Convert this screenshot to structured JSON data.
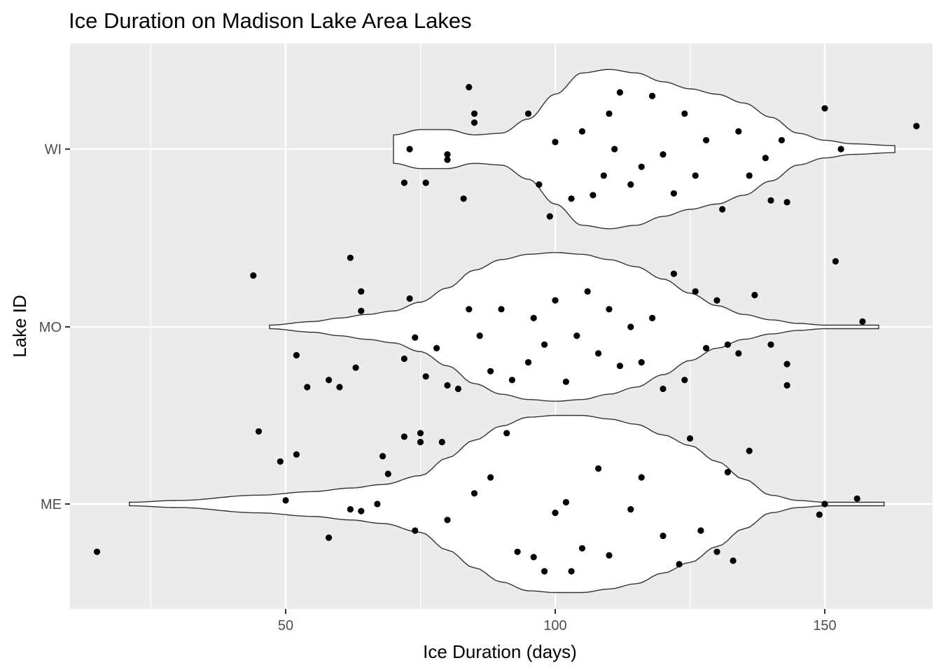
{
  "chart_data": {
    "type": "violin",
    "title": "Ice Duration on Madison Lake Area Lakes",
    "xlabel": "Ice Duration (days)",
    "ylabel": "Lake ID",
    "xlim": [
      10,
      170
    ],
    "x_ticks": [
      50,
      100,
      150
    ],
    "x_minor_ticks": [
      25,
      75,
      125
    ],
    "grid": true,
    "categories": [
      "ME",
      "MO",
      "WI"
    ],
    "colors": {
      "panel_background": "#ebebeb",
      "grid": "#ffffff",
      "violin_fill": "#ffffff",
      "violin_outline": "#333333",
      "points": "#000000"
    },
    "series": [
      {
        "category": "ME",
        "range": [
          21,
          161
        ],
        "density_profile": [
          [
            21,
            0.01
          ],
          [
            30,
            0.02
          ],
          [
            45,
            0.05
          ],
          [
            55,
            0.07
          ],
          [
            62,
            0.09
          ],
          [
            68,
            0.11
          ],
          [
            75,
            0.16
          ],
          [
            80,
            0.26
          ],
          [
            85,
            0.36
          ],
          [
            90,
            0.44
          ],
          [
            95,
            0.49
          ],
          [
            100,
            0.5
          ],
          [
            105,
            0.5
          ],
          [
            110,
            0.48
          ],
          [
            115,
            0.45
          ],
          [
            120,
            0.39
          ],
          [
            125,
            0.33
          ],
          [
            130,
            0.24
          ],
          [
            135,
            0.14
          ],
          [
            140,
            0.05
          ],
          [
            145,
            0.02
          ],
          [
            150,
            0.01
          ],
          [
            161,
            0.01
          ]
        ],
        "points": [
          [
            15,
            0.27
          ],
          [
            45,
            -0.41
          ],
          [
            49,
            -0.24
          ],
          [
            50,
            -0.02
          ],
          [
            52,
            -0.28
          ],
          [
            58,
            0.19
          ],
          [
            62,
            0.03
          ],
          [
            64,
            0.04
          ],
          [
            67,
            0.0
          ],
          [
            68,
            -0.27
          ],
          [
            69,
            -0.17
          ],
          [
            72,
            -0.38
          ],
          [
            74,
            0.15
          ],
          [
            75,
            -0.35
          ],
          [
            75,
            -0.4
          ],
          [
            79,
            -0.35
          ],
          [
            80,
            0.09
          ],
          [
            85,
            -0.06
          ],
          [
            88,
            -0.15
          ],
          [
            91,
            -0.4
          ],
          [
            93,
            0.27
          ],
          [
            96,
            0.3
          ],
          [
            98,
            0.38
          ],
          [
            100,
            0.05
          ],
          [
            102,
            -0.01
          ],
          [
            103,
            0.38
          ],
          [
            105,
            0.25
          ],
          [
            108,
            -0.2
          ],
          [
            110,
            0.29
          ],
          [
            114,
            0.03
          ],
          [
            116,
            -0.15
          ],
          [
            120,
            0.18
          ],
          [
            123,
            0.34
          ],
          [
            125,
            -0.37
          ],
          [
            127,
            0.15
          ],
          [
            130,
            0.27
          ],
          [
            132,
            -0.18
          ],
          [
            133,
            0.32
          ],
          [
            136,
            -0.3
          ],
          [
            149,
            0.06
          ],
          [
            150,
            0.0
          ],
          [
            156,
            -0.03
          ]
        ]
      },
      {
        "category": "MO",
        "range": [
          47,
          160
        ],
        "density_profile": [
          [
            47,
            0.01
          ],
          [
            55,
            0.03
          ],
          [
            60,
            0.05
          ],
          [
            65,
            0.07
          ],
          [
            70,
            0.09
          ],
          [
            75,
            0.14
          ],
          [
            80,
            0.22
          ],
          [
            85,
            0.32
          ],
          [
            90,
            0.38
          ],
          [
            95,
            0.41
          ],
          [
            100,
            0.42
          ],
          [
            105,
            0.41
          ],
          [
            110,
            0.38
          ],
          [
            115,
            0.34
          ],
          [
            120,
            0.27
          ],
          [
            125,
            0.19
          ],
          [
            130,
            0.12
          ],
          [
            135,
            0.07
          ],
          [
            140,
            0.04
          ],
          [
            145,
            0.02
          ],
          [
            150,
            0.01
          ],
          [
            160,
            0.01
          ]
        ],
        "points": [
          [
            44,
            -0.29
          ],
          [
            52,
            0.16
          ],
          [
            54,
            0.34
          ],
          [
            58,
            0.3
          ],
          [
            60,
            0.34
          ],
          [
            62,
            -0.39
          ],
          [
            63,
            0.23
          ],
          [
            64,
            -0.09
          ],
          [
            64,
            -0.2
          ],
          [
            72,
            0.18
          ],
          [
            73,
            -0.16
          ],
          [
            74,
            0.06
          ],
          [
            76,
            0.28
          ],
          [
            78,
            0.12
          ],
          [
            80,
            0.33
          ],
          [
            82,
            0.35
          ],
          [
            84,
            -0.1
          ],
          [
            86,
            0.05
          ],
          [
            88,
            0.25
          ],
          [
            90,
            -0.1
          ],
          [
            92,
            0.3
          ],
          [
            95,
            0.2
          ],
          [
            96,
            -0.05
          ],
          [
            98,
            0.1
          ],
          [
            100,
            -0.15
          ],
          [
            102,
            0.31
          ],
          [
            104,
            0.05
          ],
          [
            106,
            -0.2
          ],
          [
            108,
            0.15
          ],
          [
            110,
            -0.1
          ],
          [
            112,
            0.22
          ],
          [
            114,
            0.0
          ],
          [
            116,
            0.2
          ],
          [
            118,
            -0.05
          ],
          [
            120,
            0.35
          ],
          [
            122,
            -0.3
          ],
          [
            124,
            0.3
          ],
          [
            126,
            -0.2
          ],
          [
            128,
            0.12
          ],
          [
            130,
            -0.15
          ],
          [
            132,
            0.1
          ],
          [
            134,
            0.15
          ],
          [
            137,
            -0.18
          ],
          [
            140,
            0.1
          ],
          [
            143,
            0.33
          ],
          [
            143,
            0.21
          ],
          [
            152,
            -0.37
          ],
          [
            157,
            -0.03
          ]
        ]
      },
      {
        "category": "WI",
        "range": [
          70,
          163
        ],
        "density_profile": [
          [
            70,
            0.08
          ],
          [
            75,
            0.11
          ],
          [
            80,
            0.11
          ],
          [
            85,
            0.08
          ],
          [
            90,
            0.09
          ],
          [
            95,
            0.17
          ],
          [
            100,
            0.31
          ],
          [
            105,
            0.43
          ],
          [
            110,
            0.45
          ],
          [
            115,
            0.43
          ],
          [
            120,
            0.38
          ],
          [
            125,
            0.34
          ],
          [
            130,
            0.31
          ],
          [
            135,
            0.26
          ],
          [
            140,
            0.18
          ],
          [
            145,
            0.09
          ],
          [
            150,
            0.05
          ],
          [
            155,
            0.03
          ],
          [
            163,
            0.02
          ]
        ],
        "points": [
          [
            72,
            0.19
          ],
          [
            73,
            0.0
          ],
          [
            76,
            0.19
          ],
          [
            80,
            0.06
          ],
          [
            80,
            0.03
          ],
          [
            83,
            0.28
          ],
          [
            84,
            -0.35
          ],
          [
            85,
            -0.15
          ],
          [
            85,
            -0.2
          ],
          [
            95,
            -0.2
          ],
          [
            97,
            0.2
          ],
          [
            99,
            0.38
          ],
          [
            100,
            -0.04
          ],
          [
            103,
            0.28
          ],
          [
            105,
            -0.1
          ],
          [
            107,
            0.26
          ],
          [
            109,
            0.15
          ],
          [
            110,
            -0.2
          ],
          [
            111,
            0.0
          ],
          [
            112,
            -0.32
          ],
          [
            114,
            0.2
          ],
          [
            116,
            0.1
          ],
          [
            118,
            -0.3
          ],
          [
            120,
            0.03
          ],
          [
            122,
            0.25
          ],
          [
            124,
            -0.2
          ],
          [
            126,
            0.15
          ],
          [
            128,
            -0.05
          ],
          [
            131,
            0.34
          ],
          [
            134,
            -0.1
          ],
          [
            136,
            0.15
          ],
          [
            139,
            0.05
          ],
          [
            140,
            0.29
          ],
          [
            142,
            -0.05
          ],
          [
            143,
            0.3
          ],
          [
            150,
            -0.23
          ],
          [
            153,
            0.0
          ],
          [
            167,
            -0.13
          ]
        ]
      }
    ]
  }
}
